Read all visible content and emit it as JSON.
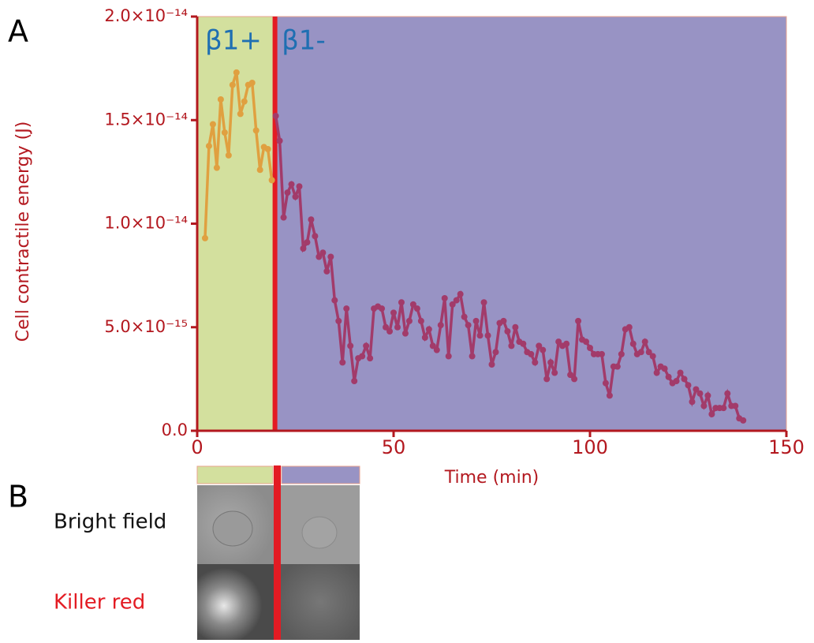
{
  "panel_labels": [
    "A",
    "B"
  ],
  "chart_data": {
    "type": "line",
    "xlabel": "Time (min)",
    "ylabel": "Cell contractile energy (J)",
    "xlim": [
      0,
      150
    ],
    "xticks": [
      0,
      50,
      100,
      150
    ],
    "ylim": [
      0,
      2e-14
    ],
    "yticks": [
      {
        "value": 0,
        "label": "0.0"
      },
      {
        "value": 5e-15,
        "label": "5.0×10⁻¹⁵"
      },
      {
        "value": 1e-14,
        "label": "1.0×10⁻¹⁴"
      },
      {
        "value": 1.5e-14,
        "label": "1.5×10⁻¹⁴"
      },
      {
        "value": 2e-14,
        "label": "2.0×10⁻¹⁴"
      }
    ],
    "spans": [
      {
        "label": "β1+",
        "start": 0,
        "end": 19.5,
        "color": "#d3e09e"
      },
      {
        "label": "β1-",
        "start": 19.5,
        "end": 150,
        "color": "#9893c4"
      }
    ],
    "marker_x": 19.8,
    "series": [
      {
        "name": "β1+",
        "color": "#e0a040",
        "x": [
          2,
          3,
          4,
          5,
          6,
          7,
          8,
          9,
          10,
          11,
          12,
          13,
          14,
          15,
          16,
          17,
          18,
          19
        ],
        "values": [
          9.3e-15,
          1.375e-14,
          1.48e-14,
          1.27e-14,
          1.6e-14,
          1.44e-14,
          1.33e-14,
          1.67e-14,
          1.73e-14,
          1.53e-14,
          1.59e-14,
          1.67e-14,
          1.68e-14,
          1.45e-14,
          1.26e-14,
          1.37e-14,
          1.36e-14,
          1.21e-14
        ]
      },
      {
        "name": "β1-",
        "color": "#a23b6a",
        "x": [
          20,
          21,
          22,
          23,
          24,
          25,
          26,
          27,
          28,
          29,
          30,
          31,
          32,
          33,
          34,
          35,
          36,
          37,
          38,
          39,
          40,
          41,
          42,
          43,
          44,
          45,
          46,
          47,
          48,
          49,
          50,
          51,
          52,
          53,
          54,
          55,
          56,
          57,
          58,
          59,
          60,
          61,
          62,
          63,
          64,
          65,
          66,
          67,
          68,
          69,
          70,
          71,
          72,
          73,
          74,
          75,
          76,
          77,
          78,
          79,
          80,
          81,
          82,
          83,
          84,
          85,
          86,
          87,
          88,
          89,
          90,
          91,
          92,
          93,
          94,
          95,
          96,
          97,
          98,
          99,
          100,
          101,
          102,
          103,
          104,
          105,
          106,
          107,
          108,
          109,
          110,
          111,
          112,
          113,
          114,
          115,
          116,
          117,
          118,
          119,
          120,
          121,
          122,
          123,
          124,
          125,
          126,
          127,
          128,
          129,
          130,
          131,
          132,
          133,
          134,
          135,
          136,
          137,
          138,
          139
        ],
        "values": [
          1.52e-14,
          1.4e-14,
          1.03e-14,
          1.15e-14,
          1.19e-14,
          1.13e-14,
          1.18e-14,
          8.8e-15,
          9.1e-15,
          1.02e-14,
          9.4e-15,
          8.4e-15,
          8.6e-15,
          7.7e-15,
          8.4e-15,
          6.3e-15,
          5.3e-15,
          3.3e-15,
          5.9e-15,
          4.1e-15,
          2.4e-15,
          3.5e-15,
          3.6e-15,
          4.1e-15,
          3.5e-15,
          5.9e-15,
          6e-15,
          5.9e-15,
          5e-15,
          4.8e-15,
          5.7e-15,
          5e-15,
          6.2e-15,
          4.7e-15,
          5.3e-15,
          6.1e-15,
          5.9e-15,
          5.3e-15,
          4.5e-15,
          4.9e-15,
          4.1e-15,
          3.9e-15,
          5.1e-15,
          6.4e-15,
          3.6e-15,
          6.1e-15,
          6.3e-15,
          6.6e-15,
          5.5e-15,
          5.1e-15,
          3.6e-15,
          5.3e-15,
          4.6e-15,
          6.2e-15,
          4.6e-15,
          3.2e-15,
          3.8e-15,
          5.2e-15,
          5.3e-15,
          4.8e-15,
          4.1e-15,
          5e-15,
          4.3e-15,
          4.2e-15,
          3.8e-15,
          3.7e-15,
          3.3e-15,
          4.1e-15,
          3.9e-15,
          2.5e-15,
          3.3e-15,
          2.8e-15,
          4.3e-15,
          4.1e-15,
          4.2e-15,
          2.7e-15,
          2.5e-15,
          5.3e-15,
          4.4e-15,
          4.3e-15,
          4e-15,
          3.7e-15,
          3.7e-15,
          3.7e-15,
          2.3e-15,
          1.7e-15,
          3.1e-15,
          3.1e-15,
          3.7e-15,
          4.9e-15,
          5e-15,
          4.2e-15,
          3.7e-15,
          3.8e-15,
          4.3e-15,
          3.8e-15,
          3.6e-15,
          2.8e-15,
          3.1e-15,
          3e-15,
          2.6e-15,
          2.3e-15,
          2.4e-15,
          2.8e-15,
          2.5e-15,
          2.2e-15,
          1.4e-15,
          2e-15,
          1.8e-15,
          1.2e-15,
          1.7e-15,
          8e-16,
          1.1e-15,
          1.1e-15,
          1.1e-15,
          1.8e-15,
          1.2e-15,
          1.2e-15,
          6e-16,
          5e-16
        ]
      }
    ]
  },
  "images": {
    "rows": [
      "Bright field",
      "Killer red"
    ]
  }
}
